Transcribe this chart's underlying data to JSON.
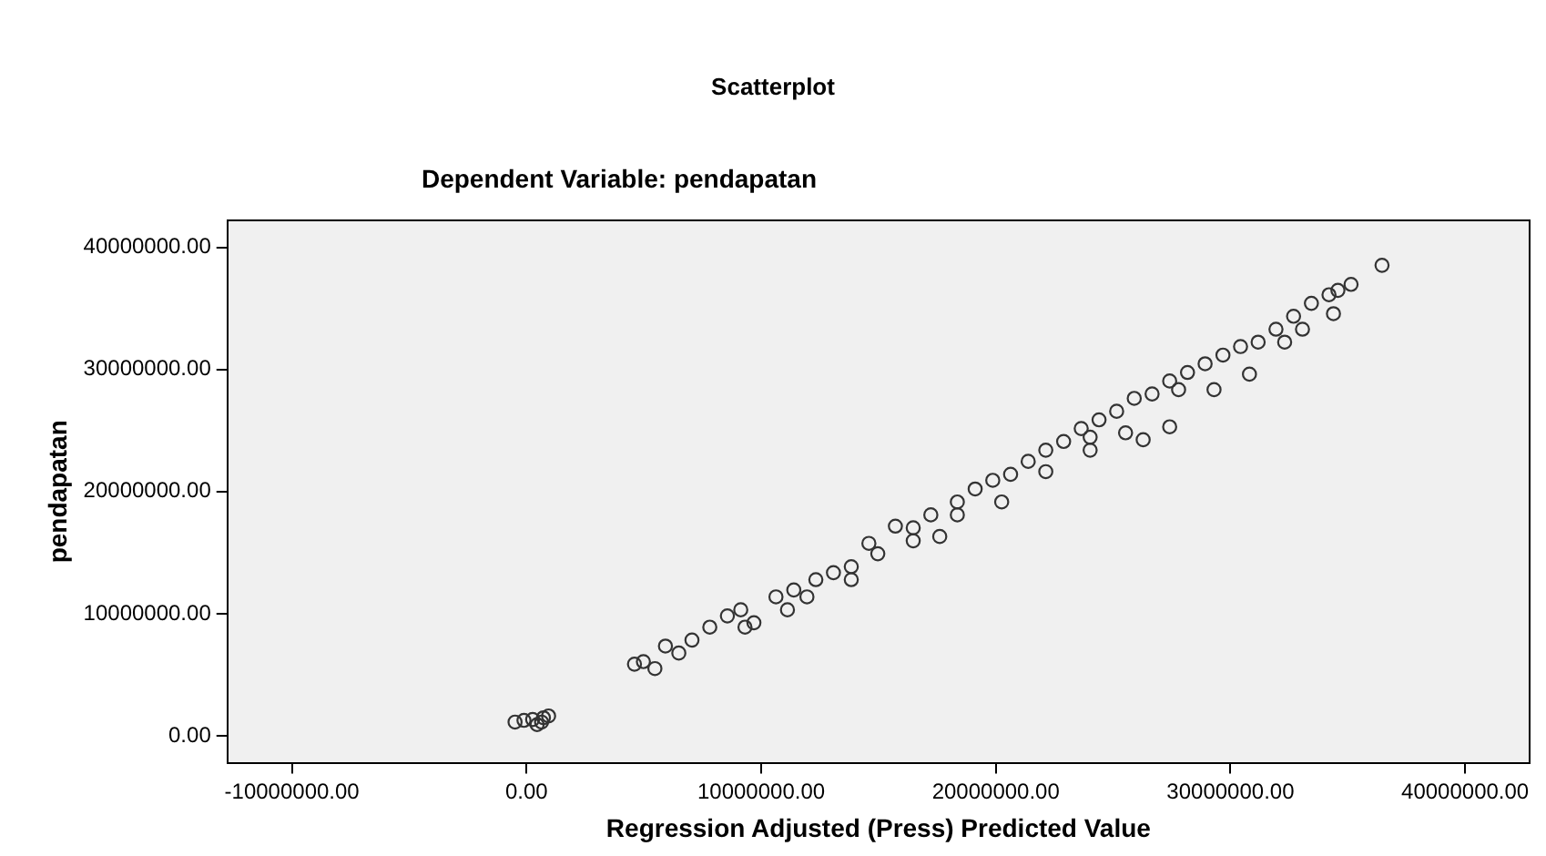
{
  "chart_data": {
    "type": "scatter",
    "title": "Scatterplot",
    "subtitle": "Dependent Variable: pendapatan",
    "xlabel": "Regression Adjusted (Press) Predicted Value",
    "ylabel": "pendapatan",
    "xlim": [
      -12750000,
      42750000
    ],
    "ylim": [
      -2200000,
      42200000
    ],
    "xticks": [
      {
        "value": -10000000,
        "label": "-10000000.00"
      },
      {
        "value": 0,
        "label": "0.00"
      },
      {
        "value": 10000000,
        "label": "10000000.00"
      },
      {
        "value": 20000000,
        "label": "20000000.00"
      },
      {
        "value": 30000000,
        "label": "30000000.00"
      },
      {
        "value": 40000000,
        "label": "40000000.00"
      }
    ],
    "yticks": [
      {
        "value": 0,
        "label": "0.00"
      },
      {
        "value": 10000000,
        "label": "10000000.00"
      },
      {
        "value": 20000000,
        "label": "20000000.00"
      },
      {
        "value": 30000000,
        "label": "30000000.00"
      },
      {
        "value": 40000000,
        "label": "40000000.00"
      }
    ],
    "grid": false,
    "legend": false,
    "marker": "circle",
    "series": [
      {
        "color": "#333333",
        "x": [
          -490000,
          -110000,
          260000,
          640000,
          940000,
          450000,
          720000,
          4600000,
          4980000,
          5470000,
          5920000,
          6490000,
          7050000,
          7810000,
          8560000,
          9130000,
          9310000,
          9690000,
          10630000,
          11120000,
          11390000,
          11950000,
          12330000,
          13080000,
          13840000,
          13840000,
          14590000,
          14970000,
          15720000,
          16480000,
          16480000,
          17230000,
          17610000,
          18360000,
          18360000,
          19120000,
          19870000,
          20250000,
          20630000,
          21380000,
          22130000,
          22130000,
          22890000,
          23640000,
          24020000,
          24020000,
          24400000,
          25150000,
          25530000,
          25900000,
          26280000,
          26660000,
          27410000,
          27410000,
          27790000,
          28170000,
          28920000,
          29300000,
          29680000,
          30430000,
          30810000,
          31180000,
          31940000,
          32310000,
          32690000,
          33070000,
          33450000,
          34200000,
          34390000,
          34580000,
          35140000,
          36460000
        ],
        "values": [
          1130000,
          1270000,
          1340000,
          1130000,
          1630000,
          920000,
          1480000,
          5870000,
          6080000,
          5510000,
          7350000,
          6780000,
          7840000,
          8900000,
          9820000,
          10320000,
          8900000,
          9260000,
          11380000,
          10320000,
          11940000,
          11380000,
          12790000,
          13360000,
          13850000,
          12790000,
          15760000,
          14910000,
          17170000,
          17030000,
          15970000,
          18090000,
          16320000,
          19150000,
          18090000,
          20210000,
          20920000,
          19150000,
          21410000,
          22470000,
          23390000,
          21630000,
          24100000,
          25160000,
          23390000,
          24450000,
          25870000,
          26570000,
          24810000,
          27630000,
          24240000,
          27990000,
          25300000,
          29050000,
          28340000,
          29750000,
          30460000,
          28340000,
          31170000,
          31870000,
          29610000,
          32230000,
          33290000,
          32230000,
          34350000,
          33290000,
          35410000,
          36110000,
          34560000,
          36470000,
          36960000,
          38520000
        ]
      }
    ]
  }
}
